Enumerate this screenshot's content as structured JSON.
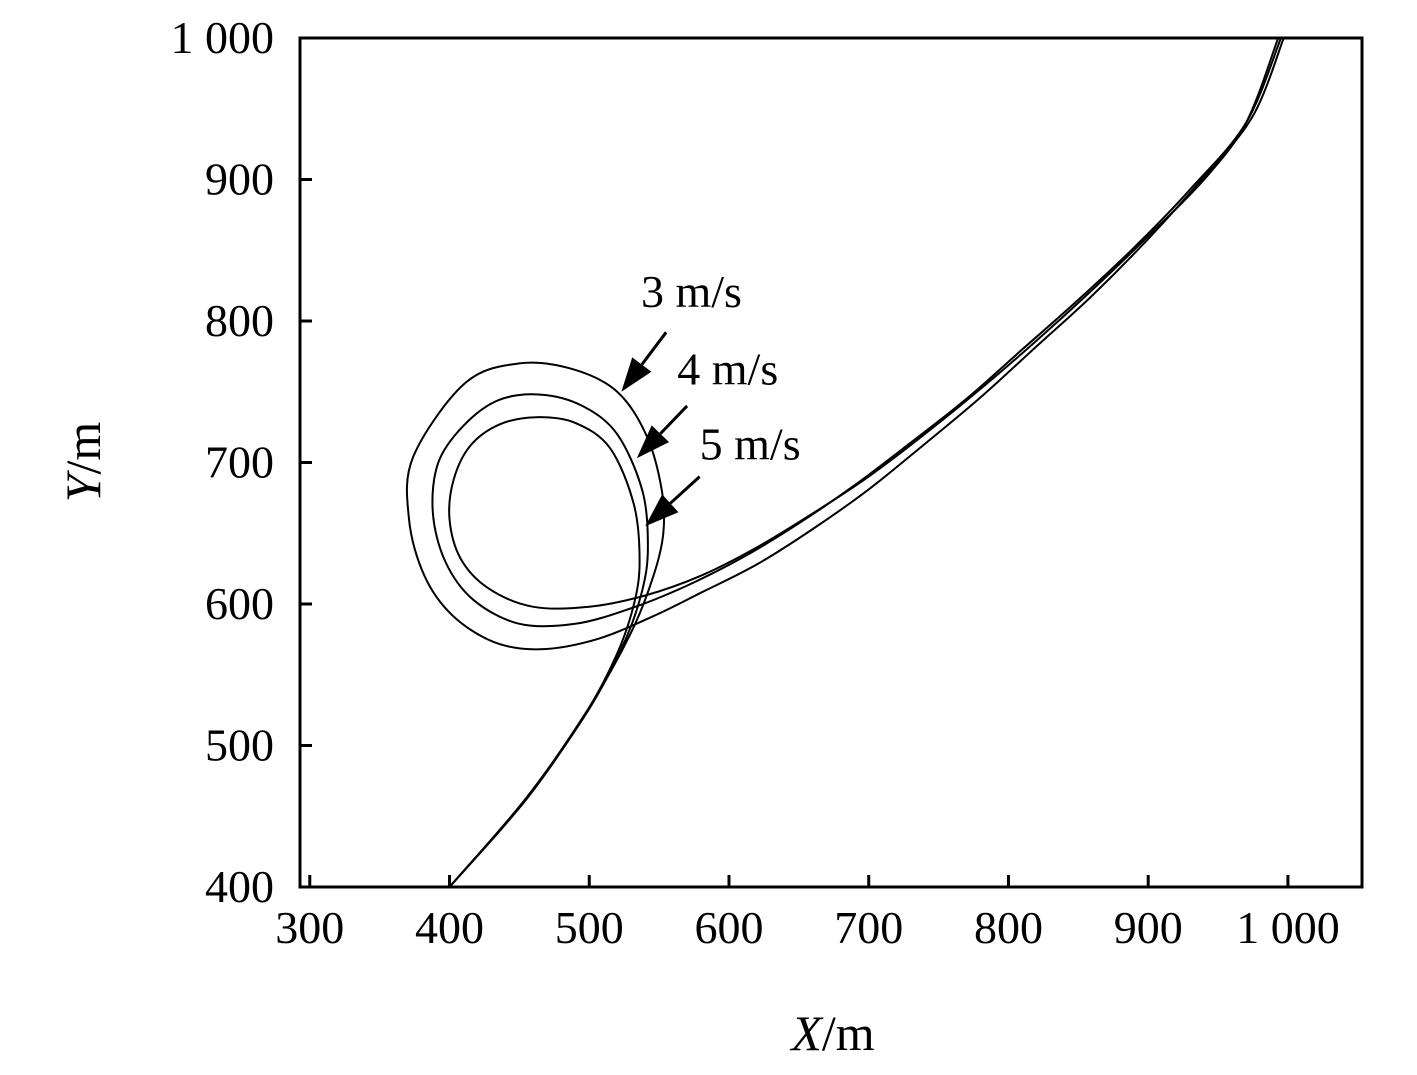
{
  "chart_data": {
    "type": "line",
    "title": "",
    "xlabel": {
      "var": "X",
      "unit": "/m"
    },
    "ylabel": {
      "var": "Y",
      "unit": "/m"
    },
    "xlim": [
      293,
      1053
    ],
    "ylim": [
      400,
      1000
    ],
    "xticks": [
      {
        "value": 300,
        "label": "300"
      },
      {
        "value": 400,
        "label": "400"
      },
      {
        "value": 500,
        "label": "500"
      },
      {
        "value": 600,
        "label": "600"
      },
      {
        "value": 700,
        "label": "700"
      },
      {
        "value": 800,
        "label": "800"
      },
      {
        "value": 900,
        "label": "900"
      },
      {
        "value": 1000,
        "label": "1 000"
      }
    ],
    "yticks": [
      {
        "value": 400,
        "label": "400"
      },
      {
        "value": 500,
        "label": "500"
      },
      {
        "value": 600,
        "label": "600"
      },
      {
        "value": 700,
        "label": "700"
      },
      {
        "value": 800,
        "label": "800"
      },
      {
        "value": 900,
        "label": "900"
      },
      {
        "value": 1000,
        "label": "1 000"
      }
    ],
    "grid": false,
    "legend": "none",
    "series": [
      {
        "name": "3 m/s",
        "points": [
          [
            400,
            400
          ],
          [
            455,
            463
          ],
          [
            500,
            527
          ],
          [
            530,
            580
          ],
          [
            546,
            620
          ],
          [
            553,
            650
          ],
          [
            552,
            680
          ],
          [
            541,
            719
          ],
          [
            520,
            750
          ],
          [
            488,
            766
          ],
          [
            450,
            770
          ],
          [
            411,
            756
          ],
          [
            374,
            704
          ],
          [
            371,
            660
          ],
          [
            382,
            620
          ],
          [
            402,
            592
          ],
          [
            432,
            573
          ],
          [
            465,
            568
          ],
          [
            505,
            575
          ],
          [
            545,
            591
          ],
          [
            580,
            608
          ],
          [
            620,
            628
          ],
          [
            660,
            653
          ],
          [
            700,
            681
          ],
          [
            740,
            713
          ],
          [
            780,
            746
          ],
          [
            820,
            782
          ],
          [
            860,
            818
          ],
          [
            900,
            858
          ],
          [
            940,
            902
          ],
          [
            975,
            945
          ],
          [
            997,
            1000
          ]
        ]
      },
      {
        "name": "4 m/s",
        "points": [
          [
            400,
            400
          ],
          [
            455,
            463
          ],
          [
            500,
            526
          ],
          [
            526,
            575
          ],
          [
            538,
            610
          ],
          [
            542,
            640
          ],
          [
            538,
            680
          ],
          [
            520,
            720
          ],
          [
            495,
            740
          ],
          [
            465,
            748
          ],
          [
            435,
            744
          ],
          [
            410,
            726
          ],
          [
            392,
            700
          ],
          [
            388,
            665
          ],
          [
            397,
            630
          ],
          [
            417,
            603
          ],
          [
            450,
            586
          ],
          [
            490,
            586
          ],
          [
            530,
            597
          ],
          [
            570,
            613
          ],
          [
            610,
            633
          ],
          [
            650,
            657
          ],
          [
            690,
            684
          ],
          [
            730,
            714
          ],
          [
            770,
            745
          ],
          [
            810,
            780
          ],
          [
            850,
            815
          ],
          [
            890,
            852
          ],
          [
            930,
            893
          ],
          [
            970,
            940
          ],
          [
            995,
            1000
          ]
        ]
      },
      {
        "name": "5 m/s",
        "points": [
          [
            400,
            400
          ],
          [
            455,
            462
          ],
          [
            497,
            522
          ],
          [
            520,
            565
          ],
          [
            532,
            600
          ],
          [
            536,
            630
          ],
          [
            532,
            670
          ],
          [
            515,
            710
          ],
          [
            490,
            728
          ],
          [
            462,
            732
          ],
          [
            436,
            727
          ],
          [
            415,
            712
          ],
          [
            403,
            688
          ],
          [
            400,
            660
          ],
          [
            408,
            632
          ],
          [
            428,
            611
          ],
          [
            460,
            598
          ],
          [
            500,
            598
          ],
          [
            540,
            606
          ],
          [
            580,
            620
          ],
          [
            620,
            640
          ],
          [
            660,
            664
          ],
          [
            700,
            690
          ],
          [
            740,
            720
          ],
          [
            780,
            752
          ],
          [
            820,
            786
          ],
          [
            860,
            822
          ],
          [
            900,
            860
          ],
          [
            940,
            900
          ],
          [
            970,
            940
          ],
          [
            993,
            1000
          ]
        ]
      }
    ],
    "annotations": [
      {
        "text": "3 m/s",
        "label_at": [
          537,
          810
        ],
        "arrow_from": [
          555,
          792
        ],
        "arrow_to": [
          523,
          750
        ]
      },
      {
        "text": "4 m/s",
        "label_at": [
          563,
          755
        ],
        "arrow_from": [
          570,
          740
        ],
        "arrow_to": [
          534,
          703
        ]
      },
      {
        "text": "5 m/s",
        "label_at": [
          579,
          702
        ],
        "arrow_from": [
          579,
          690
        ],
        "arrow_to": [
          540,
          655
        ]
      }
    ]
  }
}
